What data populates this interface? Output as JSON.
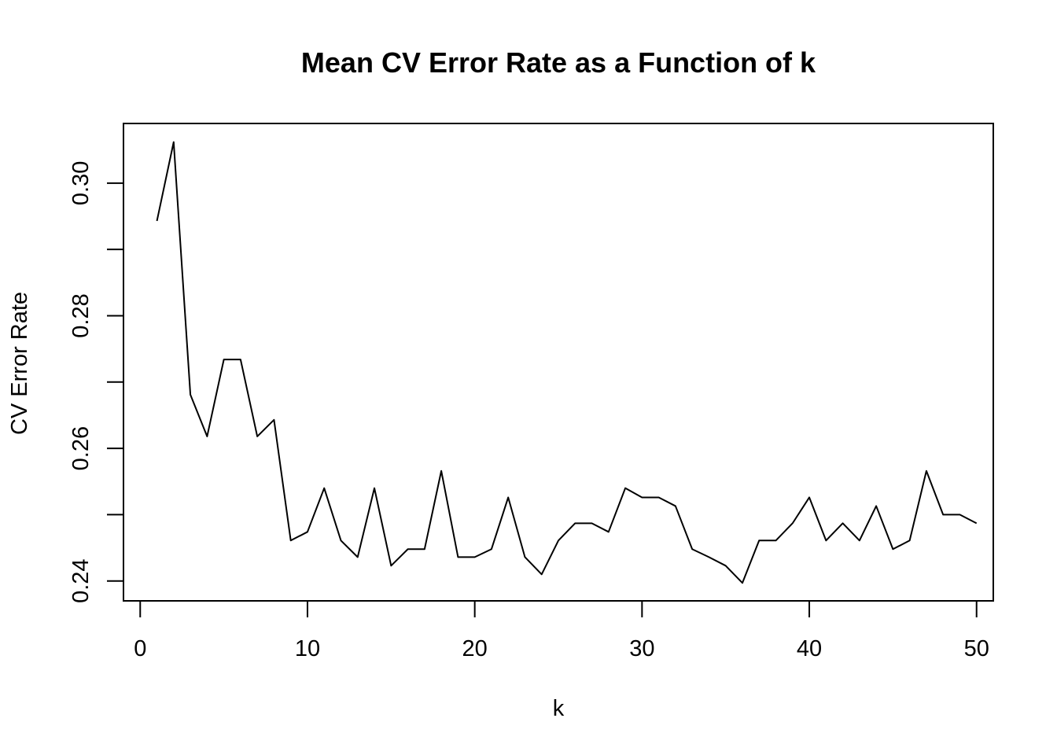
{
  "chart_data": {
    "type": "line",
    "title": "Mean CV Error Rate as a Function of k",
    "xlabel": "k",
    "ylabel": "CV Error Rate",
    "xlim": [
      -1,
      51
    ],
    "ylim": [
      0.237,
      0.309
    ],
    "x_ticks": [
      0,
      10,
      20,
      30,
      40,
      50
    ],
    "y_ticks": [
      0.24,
      0.25,
      0.26,
      0.27,
      0.28,
      0.29,
      0.3
    ],
    "y_tick_labels": [
      {
        "value": 0.24,
        "label": "0.24"
      },
      {
        "value": 0.26,
        "label": "0.26"
      },
      {
        "value": 0.28,
        "label": "0.28"
      },
      {
        "value": 0.3,
        "label": "0.30"
      }
    ],
    "grid": false,
    "legend": "none",
    "series": [
      {
        "x": [
          1,
          2,
          3,
          4,
          5,
          6,
          7,
          8,
          9,
          10,
          11,
          12,
          13,
          14,
          15,
          16,
          17,
          18,
          19,
          20,
          21,
          22,
          23,
          24,
          25,
          26,
          27,
          28,
          29,
          30,
          31,
          32,
          33,
          34,
          35,
          36,
          37,
          38,
          39,
          40,
          41,
          42,
          43,
          44,
          45,
          46,
          47,
          48,
          49,
          50
        ],
        "values": [
          0.2943,
          0.3062,
          0.2681,
          0.2618,
          0.2734,
          0.2734,
          0.2618,
          0.2643,
          0.2461,
          0.2474,
          0.254,
          0.2461,
          0.2436,
          0.254,
          0.2423,
          0.2448,
          0.2448,
          0.2566,
          0.2436,
          0.2436,
          0.2448,
          0.2526,
          0.2436,
          0.241,
          0.2461,
          0.2487,
          0.2487,
          0.2474,
          0.254,
          0.2526,
          0.2526,
          0.2513,
          0.2448,
          0.2436,
          0.2423,
          0.2397,
          0.2461,
          0.2461,
          0.2487,
          0.2526,
          0.2461,
          0.2487,
          0.2461,
          0.2513,
          0.2448,
          0.2461,
          0.2566,
          0.25,
          0.25,
          0.2487
        ],
        "color": "#000000"
      }
    ]
  }
}
